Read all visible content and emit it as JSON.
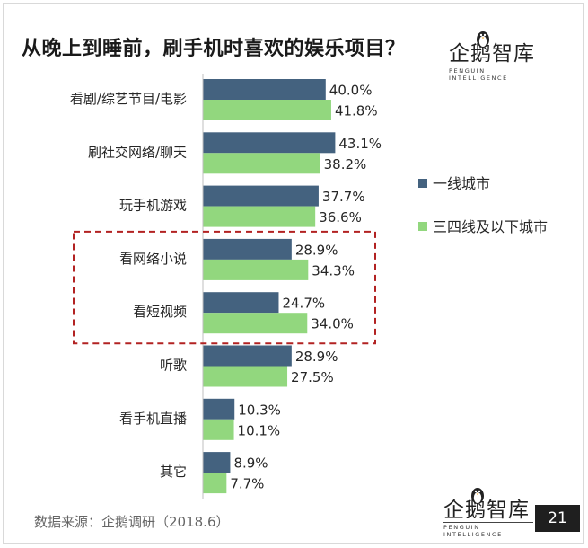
{
  "title": "从晚上到睡前，刷手机时喜欢的娱乐项目？",
  "logo": {
    "name": "企鹅智库",
    "subtitle": "PENGUIN INTELLIGENCE"
  },
  "source": "数据来源：企鹅调研（2018.6）",
  "page_number": "21",
  "colors": {
    "series1": "#44627f",
    "series2": "#92d77e",
    "highlight_box": "#b22222"
  },
  "chart_data": {
    "type": "bar",
    "orientation": "horizontal",
    "categories": [
      "看剧/综艺节目/电影",
      "刷社交网络/聊天",
      "玩手机游戏",
      "看网络小说",
      "看短视频",
      "听歌",
      "看手机直播",
      "其它"
    ],
    "series": [
      {
        "name": "一线城市",
        "values": [
          40.0,
          43.1,
          37.7,
          28.9,
          24.7,
          28.9,
          10.3,
          8.9
        ],
        "labels": [
          "40.0%",
          "43.1%",
          "37.7%",
          "28.9%",
          "24.7%",
          "28.9%",
          "10.3%",
          "8.9%"
        ]
      },
      {
        "name": "三四线及以下城市",
        "values": [
          41.8,
          38.2,
          36.6,
          34.3,
          34.0,
          27.5,
          10.1,
          7.7
        ],
        "labels": [
          "41.8%",
          "38.2%",
          "36.6%",
          "34.3%",
          "34.0%",
          "27.5%",
          "10.1%",
          "7.7%"
        ]
      }
    ],
    "xlim": [
      0,
      60
    ],
    "grid": false,
    "legend_position": "right",
    "highlighted_categories": [
      "看网络小说",
      "看短视频"
    ]
  }
}
